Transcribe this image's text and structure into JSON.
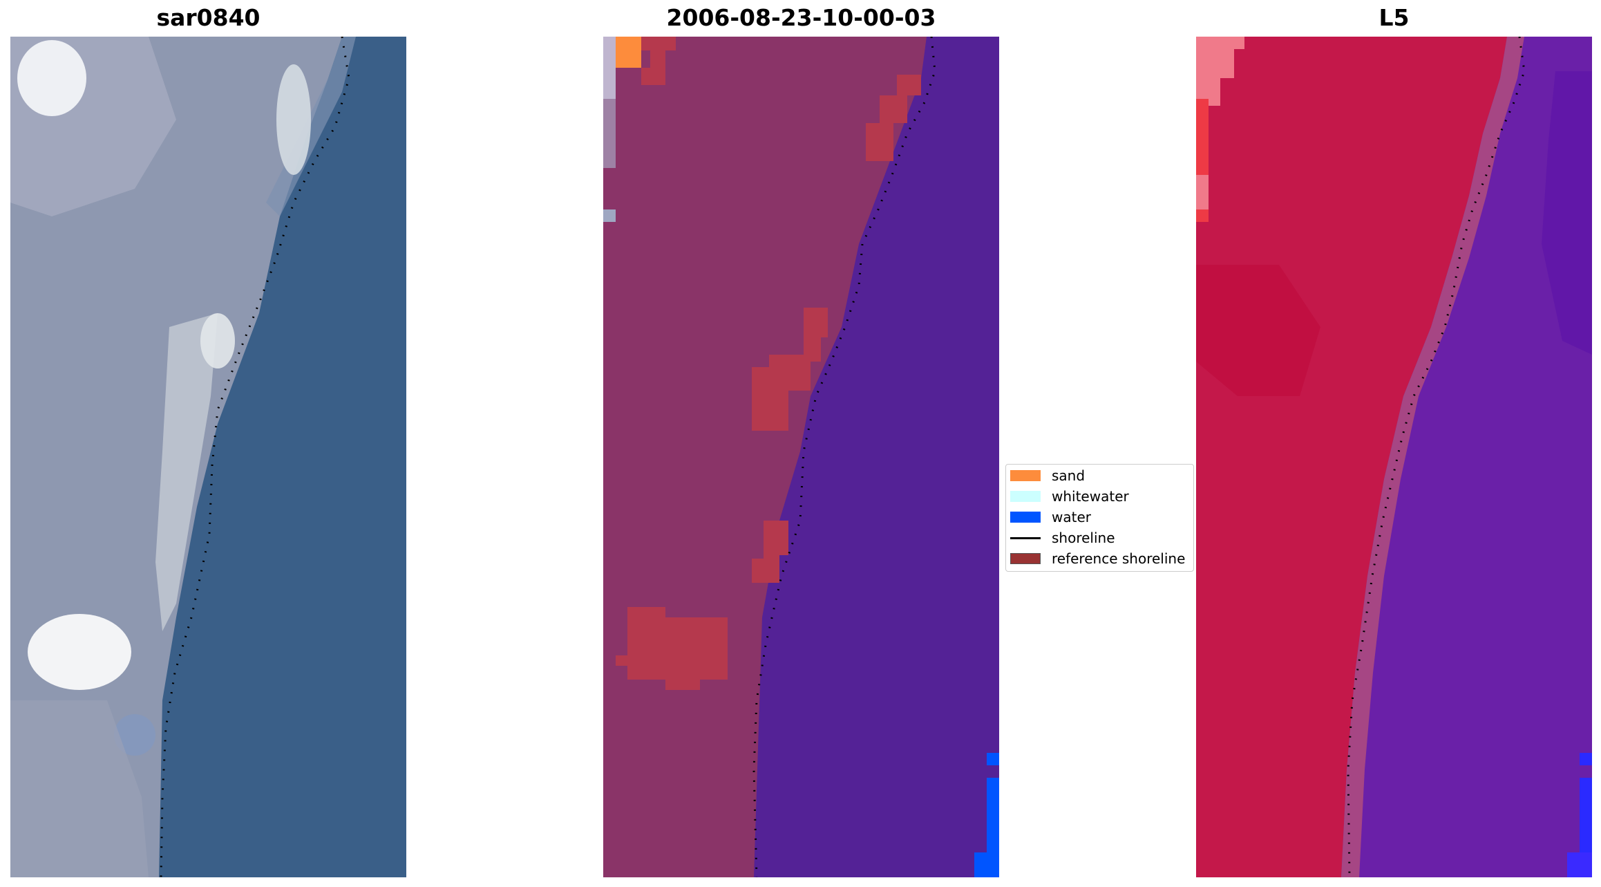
{
  "panels": [
    {
      "title": "sar0840"
    },
    {
      "title": "2006-08-23-10-00-03"
    },
    {
      "title": "L5"
    }
  ],
  "legend": {
    "items": [
      {
        "label": "sand",
        "color": "#fd8c3c",
        "kind": "patch"
      },
      {
        "label": "whitewater",
        "color": "#ccffff",
        "kind": "patch"
      },
      {
        "label": "water",
        "color": "#0055ff",
        "kind": "patch"
      },
      {
        "label": "shoreline",
        "color": "#000000",
        "kind": "line"
      },
      {
        "label": "reference shoreline",
        "color": "#993333",
        "kind": "patch"
      }
    ]
  },
  "colors": {
    "rgb_land": "#9aa2b8",
    "rgb_water": "#345a85",
    "classified_land": "#8a3468",
    "classified_water": "#542296",
    "ndwi_land": "#c4184a",
    "ndwi_water": "#6a20a8"
  }
}
